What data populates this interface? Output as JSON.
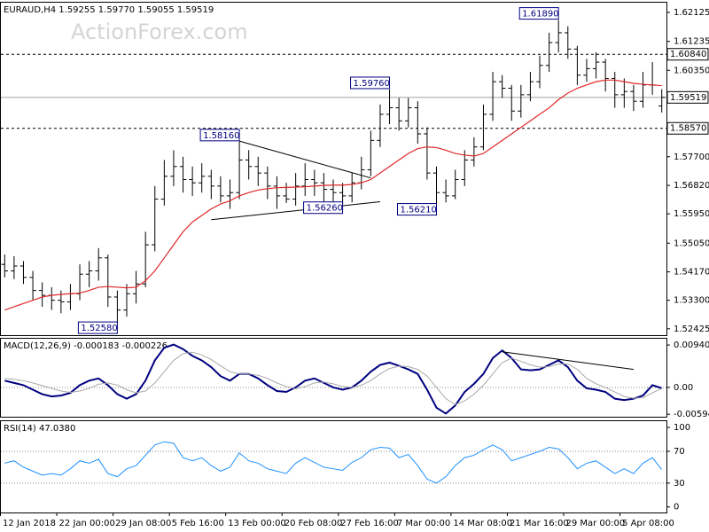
{
  "chart_data": [
    {
      "type": "ohlc",
      "title": "EURAUD,H4  1.59255 1.59770 1.59055 1.59519",
      "watermark": "ActionForex.com",
      "color": "#000000",
      "categories": [
        "12 Jan 2018",
        null,
        null,
        null,
        null,
        null,
        "22 Jan 00:00",
        null,
        null,
        null,
        null,
        null,
        "29 Jan 08:00",
        null,
        null,
        null,
        null,
        null,
        "5 Feb 16:00",
        null,
        null,
        null,
        null,
        null,
        "13 Feb 00:00",
        null,
        null,
        null,
        null,
        null,
        "20 Feb 08:00",
        null,
        null,
        null,
        null,
        null,
        "27 Feb 16:00",
        null,
        null,
        null,
        null,
        null,
        "7 Mar 00:00",
        null,
        null,
        null,
        null,
        null,
        "14 Mar 08:00",
        null,
        null,
        null,
        null,
        null,
        "21 Mar 16:00",
        null,
        null,
        null,
        null,
        null,
        "29 Mar 00:00",
        null,
        null,
        null,
        null,
        null,
        "5 Apr 08:00",
        null,
        null,
        null,
        null
      ],
      "open": [
        1.544,
        1.542,
        1.5435,
        1.54,
        1.536,
        1.5345,
        1.533,
        1.5325,
        1.535,
        1.541,
        1.542,
        1.546,
        1.534,
        1.53,
        1.535,
        1.538,
        1.55,
        1.564,
        1.571,
        1.574,
        1.57,
        1.569,
        1.571,
        1.568,
        1.565,
        1.566,
        1.576,
        1.574,
        1.572,
        1.568,
        1.565,
        1.564,
        1.568,
        1.57,
        1.569,
        1.567,
        1.566,
        1.565,
        1.569,
        1.573,
        1.582,
        1.59,
        1.592,
        1.588,
        1.592,
        1.584,
        1.572,
        1.566,
        1.565,
        1.57,
        1.576,
        1.58,
        1.59,
        1.6,
        1.598,
        1.591,
        1.596,
        1.6,
        1.605,
        1.612,
        1.615,
        1.61,
        1.602,
        1.604,
        1.606,
        1.601,
        1.596,
        1.597,
        1.594,
        1.599,
        1.59255
      ],
      "high": [
        1.547,
        1.5465,
        1.545,
        1.542,
        1.5385,
        1.537,
        1.536,
        1.538,
        1.544,
        1.545,
        1.549,
        1.547,
        1.536,
        1.538,
        1.542,
        1.554,
        1.568,
        1.576,
        1.579,
        1.577,
        1.574,
        1.575,
        1.573,
        1.571,
        1.57,
        1.5816,
        1.579,
        1.577,
        1.574,
        1.571,
        1.569,
        1.572,
        1.575,
        1.573,
        1.572,
        1.57,
        1.569,
        1.572,
        1.577,
        1.585,
        1.593,
        1.5976,
        1.595,
        1.595,
        1.594,
        1.586,
        1.574,
        1.57,
        1.573,
        1.579,
        1.583,
        1.593,
        1.603,
        1.602,
        1.599,
        1.599,
        1.603,
        1.608,
        1.615,
        1.6189,
        1.617,
        1.611,
        1.607,
        1.609,
        1.607,
        1.603,
        1.601,
        1.599,
        1.603,
        1.606,
        1.5977
      ],
      "low": [
        1.54,
        1.5395,
        1.538,
        1.533,
        1.531,
        1.53,
        1.529,
        1.53,
        1.533,
        1.537,
        1.539,
        1.531,
        1.5258,
        1.528,
        1.532,
        1.537,
        1.548,
        1.562,
        1.568,
        1.566,
        1.565,
        1.566,
        1.564,
        1.563,
        1.561,
        1.564,
        1.57,
        1.568,
        1.564,
        1.561,
        1.5628,
        1.562,
        1.565,
        1.565,
        1.563,
        1.563,
        1.5626,
        1.563,
        1.567,
        1.571,
        1.58,
        1.587,
        1.585,
        1.586,
        1.581,
        1.57,
        1.5621,
        1.563,
        1.564,
        1.568,
        1.574,
        1.579,
        1.588,
        1.595,
        1.588,
        1.589,
        1.594,
        1.598,
        1.603,
        1.609,
        1.607,
        1.599,
        1.6,
        1.601,
        1.597,
        1.592,
        1.592,
        1.591,
        1.592,
        1.596,
        1.59055
      ],
      "close": [
        1.542,
        1.5435,
        1.54,
        1.536,
        1.5345,
        1.533,
        1.5325,
        1.535,
        1.541,
        1.542,
        1.546,
        1.534,
        1.53,
        1.535,
        1.538,
        1.55,
        1.564,
        1.571,
        1.574,
        1.57,
        1.569,
        1.571,
        1.568,
        1.565,
        1.566,
        1.576,
        1.574,
        1.572,
        1.568,
        1.565,
        1.564,
        1.568,
        1.57,
        1.569,
        1.567,
        1.566,
        1.565,
        1.569,
        1.573,
        1.582,
        1.59,
        1.592,
        1.588,
        1.592,
        1.584,
        1.572,
        1.566,
        1.565,
        1.57,
        1.576,
        1.58,
        1.59,
        1.6,
        1.598,
        1.591,
        1.596,
        1.6,
        1.605,
        1.612,
        1.615,
        1.61,
        1.602,
        1.604,
        1.606,
        1.601,
        1.596,
        1.597,
        1.594,
        1.599,
        1.599,
        1.59519
      ],
      "moving_average": {
        "color": "#e0282a",
        "values": [
          1.53,
          1.531,
          1.532,
          1.533,
          1.534,
          1.5345,
          1.5348,
          1.535,
          1.5352,
          1.536,
          1.537,
          1.5372,
          1.537,
          1.5368,
          1.537,
          1.539,
          1.542,
          1.546,
          1.55,
          1.554,
          1.557,
          1.559,
          1.561,
          1.5625,
          1.5635,
          1.565,
          1.566,
          1.5668,
          1.5672,
          1.5675,
          1.5676,
          1.5677,
          1.5678,
          1.568,
          1.5682,
          1.5683,
          1.5683,
          1.5685,
          1.569,
          1.57,
          1.572,
          1.574,
          1.576,
          1.578,
          1.5795,
          1.58,
          1.5798,
          1.579,
          1.578,
          1.5775,
          1.5772,
          1.578,
          1.58,
          1.582,
          1.584,
          1.586,
          1.588,
          1.59,
          1.592,
          1.5945,
          1.5965,
          1.598,
          1.599,
          1.6,
          1.6005,
          1.6005,
          1.6,
          1.5995,
          1.5992,
          1.599,
          1.5988
        ]
      },
      "levels": [
        {
          "value": 1.6084,
          "label": "1.60840"
        },
        {
          "value": 1.5857,
          "label": "1.58570"
        }
      ],
      "last_price": 1.59519,
      "annotations": [
        {
          "value": 1.6189,
          "label": "1.61890"
        },
        {
          "value": 1.5976,
          "label": "1.59760"
        },
        {
          "value": 1.5816,
          "label": "1.58160"
        },
        {
          "value": 1.5626,
          "label": "1.56260"
        },
        {
          "value": 1.5621,
          "label": "1.56210"
        },
        {
          "value": 1.5258,
          "label": "1.52580"
        }
      ],
      "trendlines": [
        {
          "start": {
            "bar": 25,
            "price": 1.5818
          },
          "end": {
            "bar": 39,
            "price": 1.5705
          }
        },
        {
          "start": {
            "bar": 22,
            "price": 1.5577
          },
          "end": {
            "bar": 40,
            "price": 1.5632
          }
        }
      ],
      "ylim": [
        1.5223,
        1.6245
      ],
      "yticks": [
        1.62125,
        1.61235,
        {
          "value": 1.6035,
          "label": "1.60350"
        },
        {
          "value": 1.577,
          "label": "1.57700"
        },
        {
          "value": 1.5682,
          "label": "1.56820"
        },
        {
          "value": 1.5595,
          "label": "1.55950"
        },
        {
          "value": 1.5505,
          "label": "1.55050"
        },
        {
          "value": 1.5417,
          "label": "1.54170"
        },
        {
          "value": 1.533,
          "label": "1.53300"
        },
        1.52425
      ]
    },
    {
      "type": "line",
      "title": "MACD(12,26,9) -0.000183 -0.000226",
      "series": [
        {
          "color": "#000080",
          "values": [
            0.0015,
            0.001,
            0.0005,
            -0.0005,
            -0.0015,
            -0.002,
            -0.0018,
            -0.0012,
            0.0005,
            0.0015,
            0.002,
            0.0005,
            -0.0015,
            -0.0025,
            -0.0015,
            0.0015,
            0.006,
            0.0088,
            0.0095,
            0.0085,
            0.007,
            0.006,
            0.0045,
            0.0025,
            0.0015,
            0.003,
            0.003,
            0.002,
            0.0005,
            -0.0008,
            -0.001,
            0.0,
            0.0015,
            0.002,
            0.001,
            0.0,
            -0.0005,
            0.0,
            0.0015,
            0.0035,
            0.005,
            0.0055,
            0.0048,
            0.004,
            0.003,
            -0.0005,
            -0.0045,
            -0.0058,
            -0.004,
            -0.001,
            0.0008,
            0.003,
            0.0065,
            0.0082,
            0.0065,
            0.004,
            0.0038,
            0.004,
            0.005,
            0.006,
            0.0045,
            0.0015,
            -0.0002,
            -0.0005,
            -0.001,
            -0.0025,
            -0.0028,
            -0.0025,
            -0.0018,
            0.0005,
            -0.000183
          ]
        },
        {
          "color": "#a9a9a9",
          "values": [
            0.002,
            0.0018,
            0.0015,
            0.001,
            0.0004,
            -0.0002,
            -0.0008,
            -0.0011,
            -0.0008,
            -0.0002,
            0.0007,
            0.001,
            0.0005,
            -0.0005,
            -0.0012,
            -0.0008,
            0.001,
            0.0035,
            0.006,
            0.0075,
            0.0078,
            0.0072,
            0.0062,
            0.0048,
            0.0035,
            0.003,
            0.003,
            0.0027,
            0.002,
            0.001,
            0.0002,
            -0.0003,
            0.0002,
            0.001,
            0.0012,
            0.0008,
            0.0002,
            0.0,
            0.0005,
            0.0015,
            0.003,
            0.0042,
            0.0047,
            0.0046,
            0.004,
            0.0025,
            0.0,
            -0.0025,
            -0.0038,
            -0.003,
            -0.0015,
            0.0005,
            0.003,
            0.0055,
            0.0065,
            0.0058,
            0.005,
            0.0045,
            0.0046,
            0.0052,
            0.0052,
            0.004,
            0.002,
            0.0008,
            0.0,
            -0.001,
            -0.002,
            -0.0024,
            -0.0023,
            -0.0012,
            -0.000226
          ]
        }
      ],
      "levels": [
        0
      ],
      "trendlines": [
        {
          "start": {
            "bar": 53,
            "price": 0.0079
          },
          "end": {
            "bar": 67,
            "price": 0.004
          }
        }
      ],
      "ylim": [
        -0.0065,
        0.011
      ],
      "yticks": [
        0.009407,
        {
          "value": 0,
          "label": "0.00"
        },
        -0.00594
      ]
    },
    {
      "type": "line",
      "title": "RSI(14) 47.0380",
      "series": [
        {
          "color": "#1e90ff",
          "values": [
            55,
            58,
            50,
            45,
            40,
            42,
            40,
            48,
            58,
            55,
            60,
            42,
            38,
            48,
            52,
            65,
            78,
            82,
            80,
            62,
            58,
            62,
            52,
            45,
            50,
            68,
            58,
            55,
            48,
            45,
            42,
            55,
            62,
            56,
            50,
            48,
            46,
            56,
            62,
            72,
            75,
            74,
            62,
            66,
            52,
            35,
            30,
            38,
            52,
            62,
            65,
            72,
            78,
            72,
            58,
            62,
            66,
            70,
            75,
            73,
            62,
            48,
            55,
            58,
            50,
            42,
            48,
            42,
            55,
            62,
            47.038
          ]
        }
      ],
      "levels": [
        70,
        30
      ],
      "ylim": [
        -7,
        109
      ],
      "yticks": [
        100,
        70,
        30,
        0
      ]
    }
  ]
}
